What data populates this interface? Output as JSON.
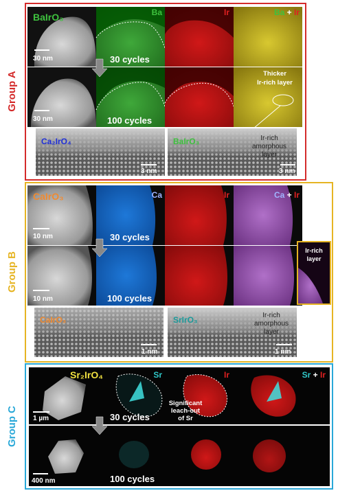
{
  "group_a": {
    "label": "Group A",
    "compound": "BaIrO₃",
    "map1": "Ba",
    "map2": "Ir",
    "plus": "+",
    "scale_bars": [
      "30 nm",
      "30 nm"
    ],
    "cycles": [
      "30 cycles",
      "100 cycles"
    ],
    "note": [
      "Thicker",
      "Ir-rich layer"
    ],
    "hr": [
      {
        "label": "Ca₂IrO₄",
        "scale": "3 nm"
      },
      {
        "label": "BaIrO₃",
        "scale": "3 nm"
      }
    ],
    "hr_note": [
      "Ir-rich",
      "amorphous",
      "layer"
    ]
  },
  "group_b": {
    "label": "Group B",
    "compound": "CaIrO₃",
    "map1": "Ca",
    "map2": "Ir",
    "plus": "+",
    "scale_bars": [
      "10 nm",
      "10 nm"
    ],
    "cycles": [
      "30 cycles",
      "100 cycles"
    ],
    "inset_note": [
      "Ir-rich",
      "layer"
    ],
    "hr": [
      {
        "label": "CaIrO₃",
        "scale": "1 nm"
      },
      {
        "label": "SrIrO₃",
        "scale": "1 nm"
      }
    ],
    "hr_note": [
      "Ir-rich",
      "amorphous",
      "layer"
    ]
  },
  "group_c": {
    "label": "Group C",
    "compound": "Sr₂IrO₄",
    "map1": "Sr",
    "map2": "Ir",
    "plus": "+",
    "scale_bars": [
      "1 µm",
      "400 nm"
    ],
    "cycles": [
      "30 cycles",
      "100 cycles"
    ],
    "note": [
      "Significant",
      "leach-out",
      "of Sr"
    ]
  }
}
